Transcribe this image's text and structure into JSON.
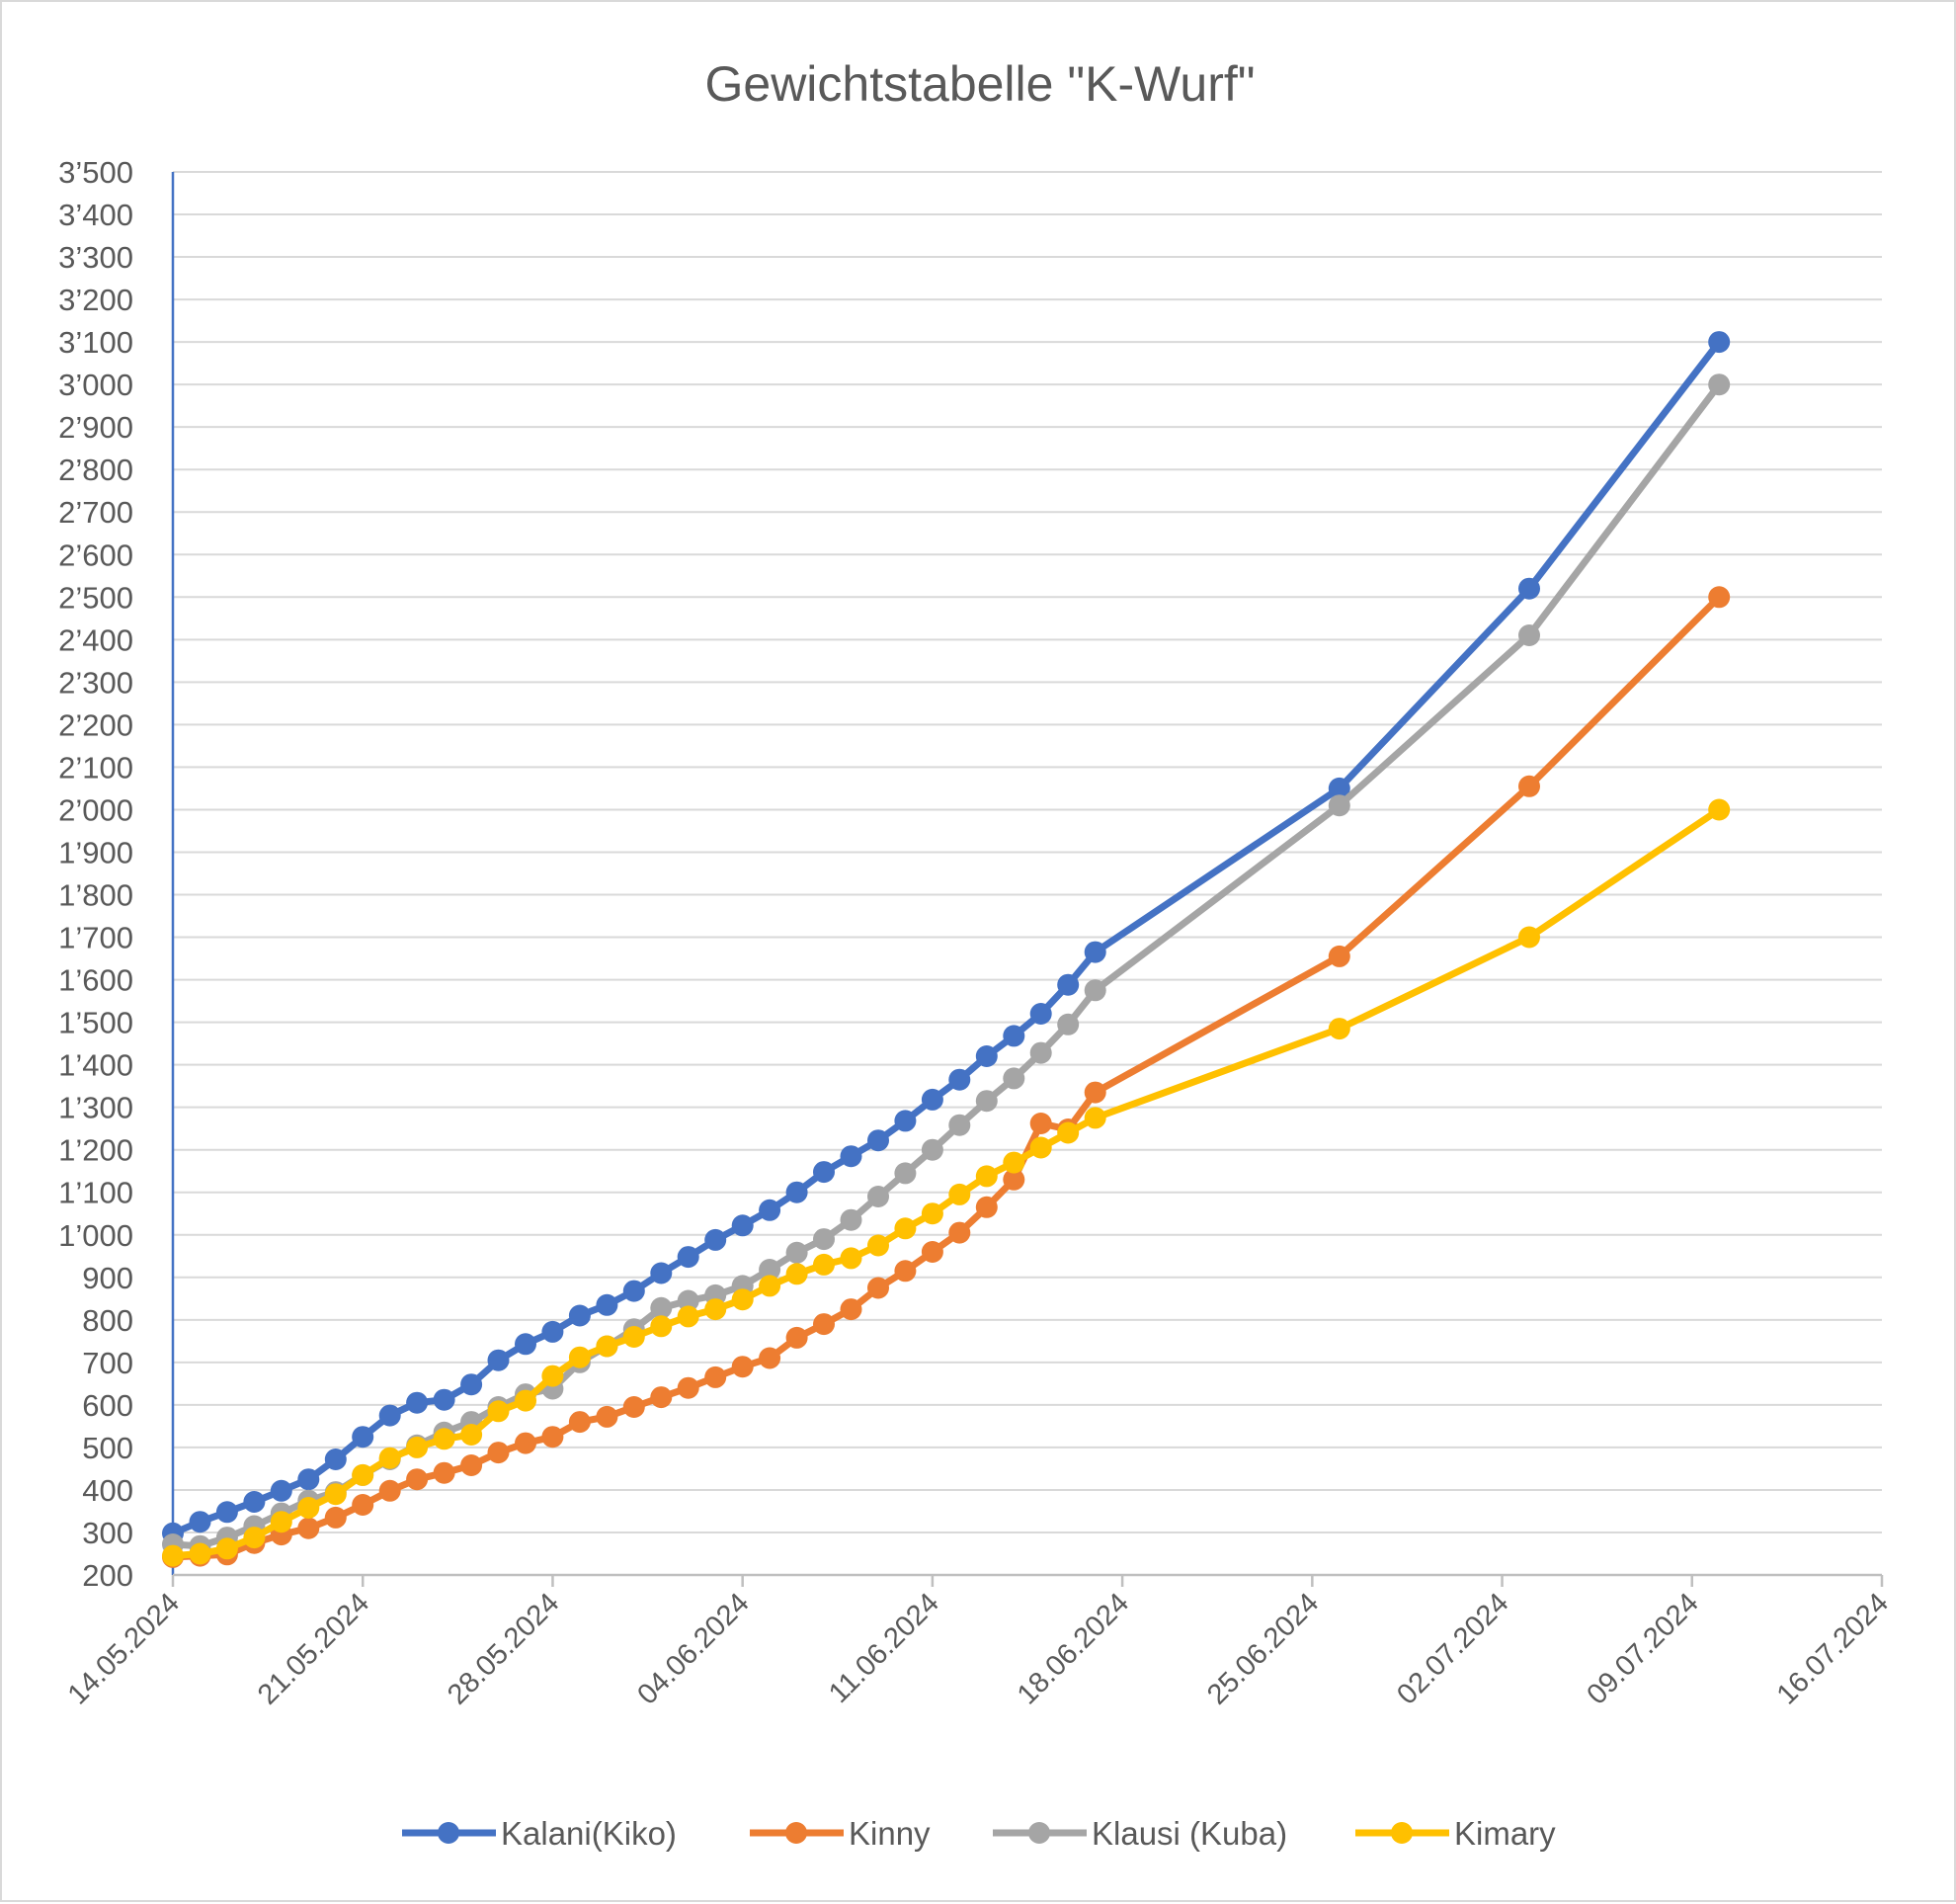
{
  "chart_data": {
    "type": "line",
    "title": "Gewichtstabelle \"K-Wurf\"",
    "xlabel": "",
    "ylabel": "",
    "x_axis": {
      "type": "date",
      "range": [
        "14.05.2024",
        "16.07.2024"
      ],
      "tick_labels": [
        "14.05.2024",
        "21.05.2024",
        "28.05.2024",
        "04.06.2024",
        "11.06.2024",
        "18.06.2024",
        "25.06.2024",
        "02.07.2024",
        "09.07.2024",
        "16.07.2024"
      ]
    },
    "y_axis": {
      "range": [
        200,
        3500
      ],
      "tick_labels": [
        "200",
        "300",
        "400",
        "500",
        "600",
        "700",
        "800",
        "900",
        "1’000",
        "1’100",
        "1’200",
        "1’300",
        "1’400",
        "1’500",
        "1’600",
        "1’700",
        "1’800",
        "1’900",
        "2’000",
        "2’100",
        "2’200",
        "2’300",
        "2’400",
        "2’500",
        "2’600",
        "2’700",
        "2’800",
        "2’900",
        "3’000",
        "3’100",
        "3’200",
        "3’300",
        "3’400",
        "3’500"
      ]
    },
    "grid": "horizontal",
    "legend": "bottom",
    "x": [
      "14.05.2024",
      "15.05.2024",
      "16.05.2024",
      "17.05.2024",
      "18.05.2024",
      "19.05.2024",
      "20.05.2024",
      "21.05.2024",
      "22.05.2024",
      "23.05.2024",
      "24.05.2024",
      "25.05.2024",
      "26.05.2024",
      "27.05.2024",
      "28.05.2024",
      "29.05.2024",
      "30.05.2024",
      "31.05.2024",
      "01.06.2024",
      "02.06.2024",
      "03.06.2024",
      "04.06.2024",
      "05.06.2024",
      "06.06.2024",
      "07.06.2024",
      "08.06.2024",
      "09.06.2024",
      "10.06.2024",
      "11.06.2024",
      "12.06.2024",
      "13.06.2024",
      "14.06.2024",
      "15.06.2024",
      "16.06.2024",
      "17.06.2024",
      "26.06.2024",
      "03.07.2024",
      "10.07.2024"
    ],
    "series": [
      {
        "name": "Kalani(Kiko)",
        "color": "#4472C4",
        "values": [
          298,
          325,
          348,
          372,
          398,
          425,
          472,
          525,
          575,
          605,
          612,
          648,
          705,
          743,
          772,
          810,
          835,
          868,
          910,
          948,
          988,
          1022,
          1058,
          1100,
          1148,
          1185,
          1222,
          1268,
          1318,
          1365,
          1420,
          1468,
          1520,
          1588,
          1665,
          2050,
          2520,
          3100
        ]
      },
      {
        "name": "Kinny",
        "color": "#ED7D31",
        "values": [
          242,
          245,
          248,
          275,
          295,
          310,
          335,
          365,
          398,
          425,
          440,
          458,
          488,
          510,
          525,
          560,
          572,
          595,
          618,
          640,
          665,
          690,
          710,
          758,
          790,
          825,
          875,
          915,
          960,
          1005,
          1065,
          1130,
          1262,
          1248,
          1335,
          1655,
          2055,
          2500
        ]
      },
      {
        "name": "Klausi (Kuba)",
        "color": "#A5A5A5",
        "values": [
          272,
          268,
          288,
          315,
          345,
          375,
          395,
          435,
          472,
          505,
          535,
          560,
          595,
          625,
          638,
          700,
          738,
          778,
          828,
          845,
          858,
          880,
          918,
          958,
          990,
          1035,
          1090,
          1145,
          1200,
          1258,
          1315,
          1368,
          1428,
          1495,
          1575,
          2010,
          2410,
          3000
        ]
      },
      {
        "name": "Kimary",
        "color": "#FFC000",
        "values": [
          245,
          250,
          262,
          288,
          325,
          358,
          390,
          435,
          475,
          500,
          520,
          530,
          585,
          610,
          668,
          712,
          738,
          760,
          785,
          808,
          825,
          848,
          880,
          908,
          930,
          945,
          975,
          1015,
          1050,
          1095,
          1138,
          1170,
          1205,
          1240,
          1275,
          1485,
          1700,
          2000
        ]
      }
    ]
  }
}
